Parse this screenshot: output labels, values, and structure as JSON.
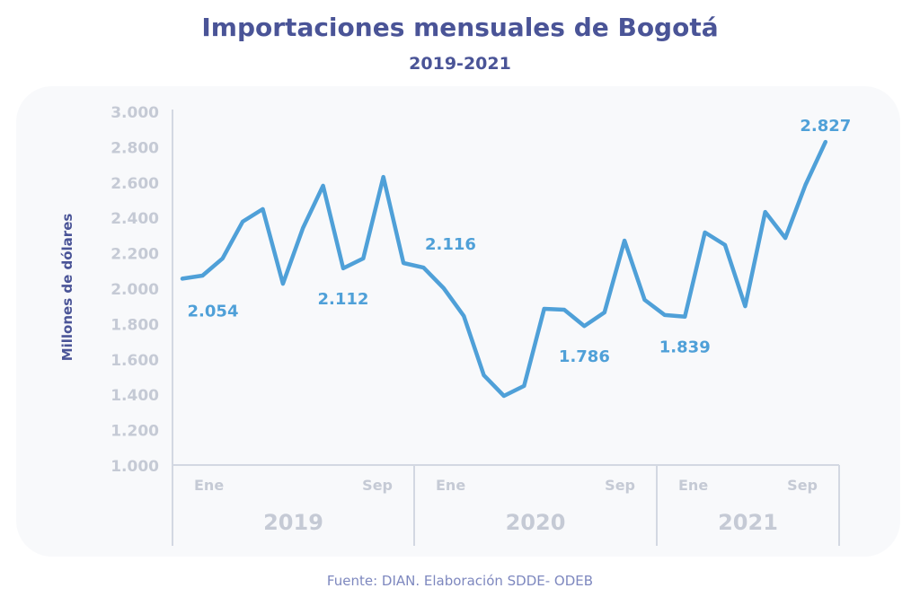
{
  "chart_data": {
    "type": "line",
    "title": "Importaciones mensuales de Bogotá",
    "subtitle": "2019-2021",
    "ylabel": "Millones de dólares",
    "xlabel": "",
    "ylim": [
      1000,
      3000
    ],
    "yticks": [
      "3.000",
      "2.800",
      "2.600",
      "2.400",
      "2.200",
      "2.000",
      "1.800",
      "1.600",
      "1.400",
      "1.200",
      "1.000"
    ],
    "ytick_values": [
      3000,
      2800,
      2600,
      2400,
      2200,
      2000,
      1800,
      1600,
      1400,
      1200,
      1000
    ],
    "grid": false,
    "years": [
      {
        "label": "2019",
        "months": 12,
        "tick_labels": [
          {
            "month": 1,
            "label": "Ene"
          },
          {
            "month": 9,
            "label": "Sep"
          }
        ]
      },
      {
        "label": "2020",
        "months": 12,
        "tick_labels": [
          {
            "month": 1,
            "label": "Ene"
          },
          {
            "month": 9,
            "label": "Sep"
          }
        ]
      },
      {
        "label": "2021",
        "months": 12,
        "tick_labels": [
          {
            "month": 1,
            "label": "Ene"
          },
          {
            "month": 9,
            "label": "Sep"
          }
        ]
      }
    ],
    "series": [
      {
        "name": "Importaciones",
        "color": "#4fa0d8",
        "values": [
          2054,
          2071,
          2168,
          2376,
          2447,
          2025,
          2340,
          2579,
          2112,
          2168,
          2629,
          2142,
          2116,
          2000,
          1843,
          1508,
          1391,
          1447,
          1883,
          1878,
          1786,
          1863,
          2269,
          1934,
          1848,
          1839,
          2315,
          2244,
          1898,
          2431,
          2284,
          2584,
          2827
        ]
      }
    ],
    "annotations": [
      {
        "index": 0,
        "label": "2.054",
        "position": "below"
      },
      {
        "index": 8,
        "label": "2.112",
        "position": "below"
      },
      {
        "index": 12,
        "label": "2.116",
        "position": "above-right"
      },
      {
        "index": 20,
        "label": "1.786",
        "position": "below"
      },
      {
        "index": 25,
        "label": "1.839",
        "position": "below"
      },
      {
        "index": 32,
        "label": "2.827",
        "position": "above"
      }
    ]
  },
  "source": "Fuente: DIAN. Elaboración SDDE- ODEB",
  "colors": {
    "title": "#4a5497",
    "axis_text": "#c5cad5",
    "axis_line": "#d3d8e2",
    "line": "#4fa0d8",
    "label": "#4fa0d8"
  }
}
